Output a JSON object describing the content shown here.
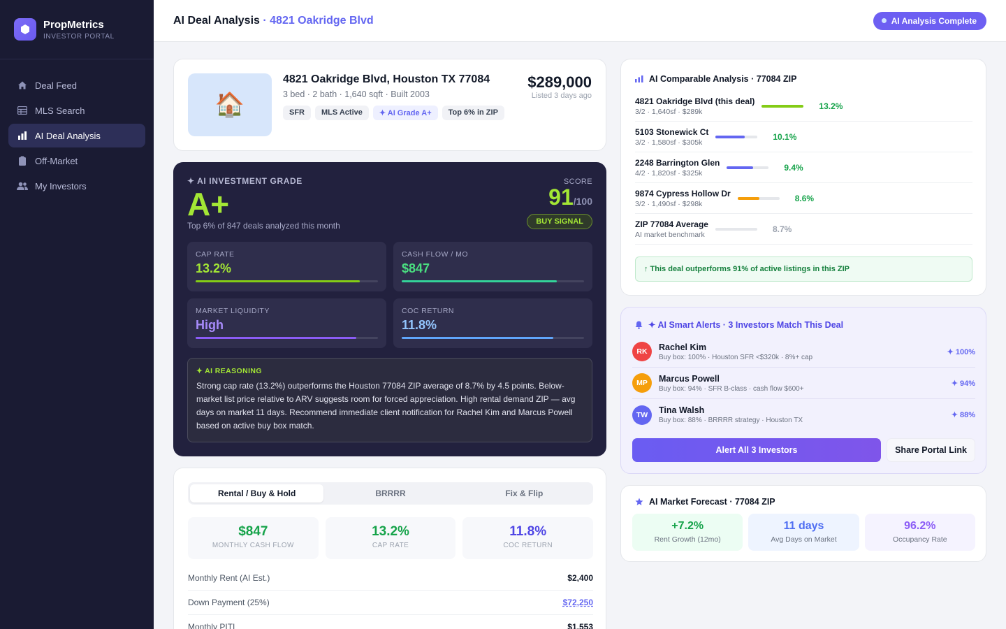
{
  "brand": {
    "name": "PropMetrics",
    "subtitle": "INVESTOR PORTAL"
  },
  "nav": [
    {
      "label": "Deal Feed",
      "icon": "home-icon"
    },
    {
      "label": "MLS Search",
      "icon": "grid-icon"
    },
    {
      "label": "AI Deal Analysis",
      "icon": "bar-chart-icon",
      "active": true
    },
    {
      "label": "Off-Market",
      "icon": "clipboard-icon"
    },
    {
      "label": "My Investors",
      "icon": "users-icon"
    }
  ],
  "header": {
    "title": "AI Deal Analysis",
    "separator": "·",
    "address": "4821 Oakridge Blvd",
    "status": "AI Analysis Complete"
  },
  "property": {
    "address": "4821 Oakridge Blvd, Houston TX 77084",
    "meta": "3 bed · 2 bath · 1,640 sqft · Built 2003",
    "tags": [
      "SFR",
      "MLS Active",
      "✦ AI Grade A+",
      "Top 6% in ZIP"
    ],
    "price": "$289,000",
    "listed": "Listed 3 days ago"
  },
  "grade": {
    "label": "✦ AI INVESTMENT GRADE",
    "letter": "A+",
    "subtitle": "Top 6% of 847 deals analyzed this month",
    "score_label": "SCORE",
    "score": "91",
    "score_max": "/100",
    "signal": "BUY SIGNAL",
    "metrics": [
      {
        "label": "CAP RATE",
        "value": "13.2%",
        "fill": 0.9,
        "color": "#a3e635",
        "bar": "#84cc16"
      },
      {
        "label": "CASH FLOW / MO",
        "value": "$847",
        "fill": 0.85,
        "color": "#4ade80",
        "bar": "#34d399"
      },
      {
        "label": "MARKET LIQUIDITY",
        "value": "High",
        "fill": 0.88,
        "color": "#a78bfa",
        "bar": "#8b5cf6"
      },
      {
        "label": "COC RETURN",
        "value": "11.8%",
        "fill": 0.83,
        "color": "#93c5fd",
        "bar": "#60a5fa"
      }
    ],
    "reasoning_label": "✦ AI REASONING",
    "reasoning": "Strong cap rate (13.2%) outperforms the Houston 77084 ZIP average of 8.7% by 4.5 points. Below-market list price relative to ARV suggests room for forced appreciation. High rental demand ZIP — avg days on market 11 days. Recommend immediate client notification for Rachel Kim and Marcus Powell based on active buy box match."
  },
  "strategy": {
    "tabs": [
      "Rental / Buy & Hold",
      "BRRRR",
      "Fix & Flip"
    ],
    "kpis": [
      {
        "value": "$847",
        "label": "MONTHLY CASH FLOW"
      },
      {
        "value": "13.2%",
        "label": "CAP RATE"
      },
      {
        "value": "11.8%",
        "label": "COC RETURN"
      }
    ],
    "rows": [
      {
        "label": "Monthly Rent (AI Est.)",
        "value": "$2,400"
      },
      {
        "label": "Down Payment (25%)",
        "value": "$72,250",
        "link": true
      },
      {
        "label": "Monthly PITI",
        "value": "$1,553"
      }
    ]
  },
  "comps": {
    "title": "AI Comparable Analysis · 77084 ZIP",
    "items": [
      {
        "name": "4821 Oakridge Blvd (this deal)",
        "meta": "3/2 · 1,640sf · $289k",
        "pct": "13.2%",
        "fill": 1.0,
        "bar": "#84cc16",
        "pctColor": "#16a34a"
      },
      {
        "name": "5103 Stonewick Ct",
        "meta": "3/2 · 1,580sf · $305k",
        "pct": "10.1%",
        "fill": 0.7,
        "bar": "#6366f1",
        "pctColor": "#16a34a"
      },
      {
        "name": "2248 Barrington Glen",
        "meta": "4/2 · 1,820sf · $325k",
        "pct": "9.4%",
        "fill": 0.62,
        "bar": "#6366f1",
        "pctColor": "#16a34a"
      },
      {
        "name": "9874 Cypress Hollow Dr",
        "meta": "3/2 · 1,490sf · $298k",
        "pct": "8.6%",
        "fill": 0.52,
        "bar": "#f59e0b",
        "pctColor": "#16a34a"
      },
      {
        "name": "ZIP 77084 Average",
        "meta": "AI market benchmark",
        "pct": "8.7%",
        "fill": 0.5,
        "bar": "#e5e7eb",
        "pctColor": "#9ca3af",
        "benchmark": true
      }
    ],
    "outperform": "↑ This deal outperforms 91% of active listings in this ZIP"
  },
  "alerts": {
    "title": "✦ AI Smart Alerts · 3 Investors Match This Deal",
    "investors": [
      {
        "initials": "RK",
        "name": "Rachel Kim",
        "box": "Buy box: 100% · Houston SFR <$320k · 8%+ cap",
        "match": "✦ 100%",
        "color": "#ef4444"
      },
      {
        "initials": "MP",
        "name": "Marcus Powell",
        "box": "Buy box: 94% · SFR B-class · cash flow $600+",
        "match": "✦ 94%",
        "color": "#f59e0b"
      },
      {
        "initials": "TW",
        "name": "Tina Walsh",
        "box": "Buy box: 88% · BRRRR strategy · Houston TX",
        "match": "✦ 88%",
        "color": "#6366f1"
      }
    ],
    "alert_button": "Alert All 3 Investors",
    "share_button": "Share Portal Link"
  },
  "forecast": {
    "title": "AI Market Forecast · 77084 ZIP",
    "boxes": [
      {
        "value": "+7.2%",
        "label": "Rent Growth (12mo)",
        "color": "#16a34a",
        "bg": "#ecfdf3"
      },
      {
        "value": "11 days",
        "label": "Avg Days on Market",
        "color": "#4f6ef2",
        "bg": "#eef4ff"
      },
      {
        "value": "96.2%",
        "label": "Occupancy Rate",
        "color": "#8b5cf6",
        "bg": "#f5f3ff"
      }
    ]
  }
}
